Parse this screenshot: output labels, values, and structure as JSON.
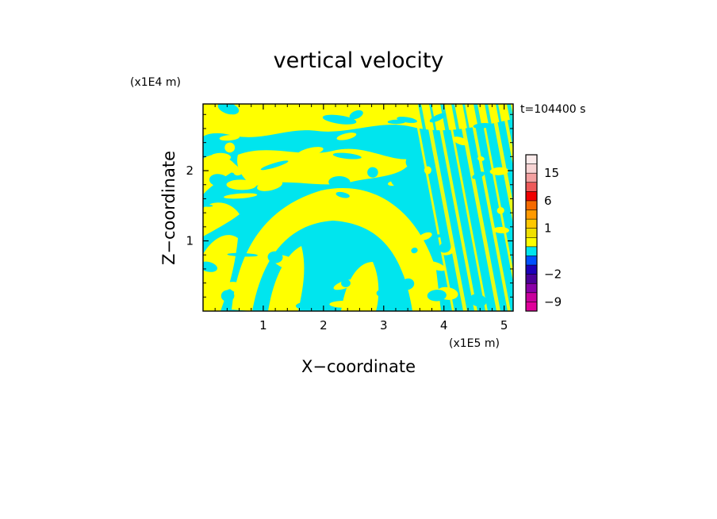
{
  "chart_data": {
    "type": "heatmap",
    "title": "vertical velocity",
    "time_label": "t=104400 s",
    "xlabel": "X−coordinate",
    "ylabel": "Z−coordinate",
    "x_scale_label": "(x1E5 m)",
    "y_scale_label": "(x1E4 m)",
    "xlim": [
      0,
      5.15
    ],
    "ylim": [
      0,
      2.95
    ],
    "x_ticks": [
      {
        "value": 1,
        "label": "1"
      },
      {
        "value": 2,
        "label": "2"
      },
      {
        "value": 3,
        "label": "3"
      },
      {
        "value": 4,
        "label": "4"
      },
      {
        "value": 5,
        "label": "5"
      }
    ],
    "y_ticks": [
      {
        "value": 1,
        "label": "1"
      },
      {
        "value": 2,
        "label": "2"
      }
    ],
    "field_colors": {
      "positive": "#ffff00",
      "negative": "#00e5ee"
    },
    "colorbar": {
      "levels": [
        {
          "from": -12,
          "to": -9,
          "color": "#e0009a"
        },
        {
          "from": -9,
          "to": -6,
          "color": "#c8009c"
        },
        {
          "from": -6,
          "to": -4,
          "color": "#8a00a8"
        },
        {
          "from": -4,
          "to": -2,
          "color": "#4b0098"
        },
        {
          "from": -2,
          "to": -1,
          "color": "#1c00b8"
        },
        {
          "from": -1,
          "to": -0.5,
          "color": "#0050ff"
        },
        {
          "from": -0.5,
          "to": 0,
          "color": "#00e5ee"
        },
        {
          "from": 0,
          "to": 0.5,
          "color": "#ffff00"
        },
        {
          "from": 0.5,
          "to": 1,
          "color": "#f0e000"
        },
        {
          "from": 1,
          "to": 2,
          "color": "#ffc800"
        },
        {
          "from": 2,
          "to": 4,
          "color": "#ff9a00"
        },
        {
          "from": 4,
          "to": 6,
          "color": "#f56a00"
        },
        {
          "from": 6,
          "to": 9,
          "color": "#f00000"
        },
        {
          "from": 9,
          "to": 12,
          "color": "#ee5a5a"
        },
        {
          "from": 12,
          "to": 15,
          "color": "#f4a0a0"
        },
        {
          "from": 15,
          "to": 20,
          "color": "#f8d4d4"
        },
        {
          "from": 20,
          "to": 25,
          "color": "#fbebeb"
        }
      ],
      "tick_labels": [
        {
          "value": 15,
          "label": "15"
        },
        {
          "value": 6,
          "label": "6"
        },
        {
          "value": 1,
          "label": "1"
        },
        {
          "value": -2,
          "label": "−2"
        },
        {
          "value": -9,
          "label": "−9"
        }
      ]
    }
  }
}
